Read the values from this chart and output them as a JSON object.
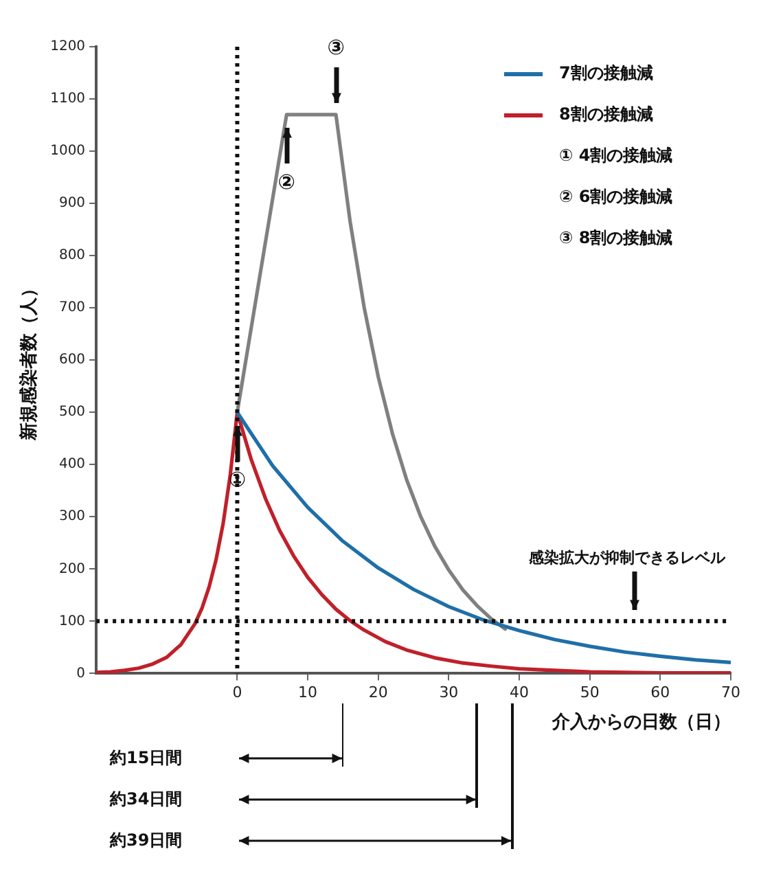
{
  "chart_data": {
    "type": "line",
    "xlabel": "介入からの日数（日）",
    "ylabel": "新規感染者数（人）",
    "xlim": [
      -20,
      70
    ],
    "xticks": [
      0,
      10,
      20,
      30,
      40,
      50,
      60,
      70
    ],
    "ylim": [
      0,
      1200
    ],
    "yticks": [
      0,
      100,
      200,
      300,
      400,
      500,
      600,
      700,
      800,
      900,
      1000,
      1100,
      1200
    ],
    "grid": false,
    "legend": "top right",
    "marker": "none",
    "line_style": "solid",
    "series": [
      {
        "name": "7割の接触減",
        "color": "#1f6fa8",
        "x": [
          0,
          5,
          10,
          15,
          20,
          25,
          30,
          35,
          40,
          45,
          50,
          55,
          60,
          65,
          70
        ],
        "values": [
          500,
          398,
          318,
          253,
          202,
          161,
          128,
          102,
          82,
          65,
          52,
          41,
          33,
          26,
          21
        ]
      },
      {
        "name": "8割の接触減",
        "color": "#c0202a",
        "x": [
          -20,
          -18,
          -16,
          -14,
          -12,
          -10,
          -8,
          -6,
          -5,
          -4,
          -3,
          -2,
          -1,
          0,
          2,
          4,
          6,
          8,
          10,
          12,
          14,
          16,
          18,
          21,
          24,
          28,
          32,
          36,
          40,
          45,
          50,
          60,
          70
        ],
        "values": [
          2,
          3,
          6,
          10,
          18,
          31,
          55,
          95,
          125,
          165,
          218,
          287,
          379,
          500,
          409,
          335,
          274,
          225,
          184,
          151,
          123,
          101,
          83,
          61,
          45,
          30,
          20,
          14,
          9,
          6,
          3,
          1,
          1
        ]
      },
      {
        "color": "#808080",
        "x": [
          0,
          7,
          14,
          16,
          18,
          20,
          22,
          24,
          26,
          28,
          30,
          32,
          34,
          36,
          38
        ],
        "values": [
          500,
          1070,
          1070,
          866,
          701,
          568,
          460,
          372,
          301,
          244,
          198,
          160,
          130,
          105,
          85
        ]
      }
    ],
    "ref_lines": [
      {
        "axis": "y",
        "value": 100,
        "label": "感染拡大が抑制できるレベル",
        "line_style": "dotted"
      },
      {
        "axis": "x",
        "value": 0,
        "line_style": "dotted"
      }
    ],
    "annotations": [
      "① 4割の接触減",
      "② 6割の接触減",
      "③ 8割の接触減",
      {
        "text": "①",
        "x": 0,
        "y": 500
      },
      {
        "text": "②",
        "x": 7,
        "y": 1070
      },
      {
        "text": "③",
        "x": 14,
        "y": 1070
      },
      "約15日間",
      "約34日間",
      "約39日間"
    ]
  }
}
